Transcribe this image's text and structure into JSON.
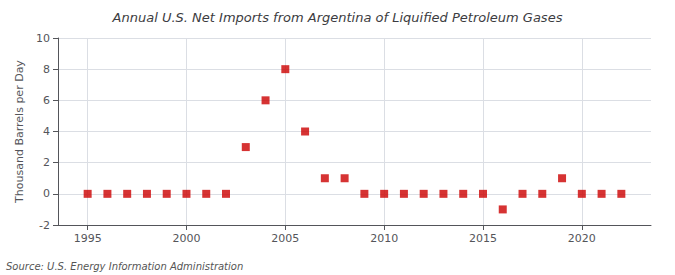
{
  "chart_data": {
    "type": "scatter",
    "title": "Annual U.S. Net Imports from Argentina of Liquified Petroleum Gases",
    "ylabel": "Thousand Barrels per Day",
    "annotation": "Source: U.S. Energy Information Administration",
    "x": [
      1995,
      1996,
      1997,
      1998,
      1999,
      2000,
      2001,
      2002,
      2003,
      2004,
      2005,
      2006,
      2007,
      2008,
      2009,
      2010,
      2011,
      2012,
      2013,
      2014,
      2015,
      2016,
      2017,
      2018,
      2019,
      2020,
      2021,
      2022
    ],
    "values": [
      0,
      0,
      0,
      0,
      0,
      0,
      0,
      0,
      3,
      6,
      8,
      4,
      1,
      1,
      0,
      0,
      0,
      0,
      0,
      0,
      0,
      -1,
      0,
      0,
      1,
      0,
      0,
      0
    ],
    "color": "#cc0000",
    "marker": "square",
    "xlim": [
      1993.5,
      2023.5
    ],
    "xticks": [
      1995,
      2000,
      2005,
      2010,
      2015,
      2020
    ],
    "ylim": [
      -2,
      10
    ],
    "yticks": [
      -2,
      0,
      2,
      4,
      6,
      8,
      10
    ],
    "grid": true
  }
}
